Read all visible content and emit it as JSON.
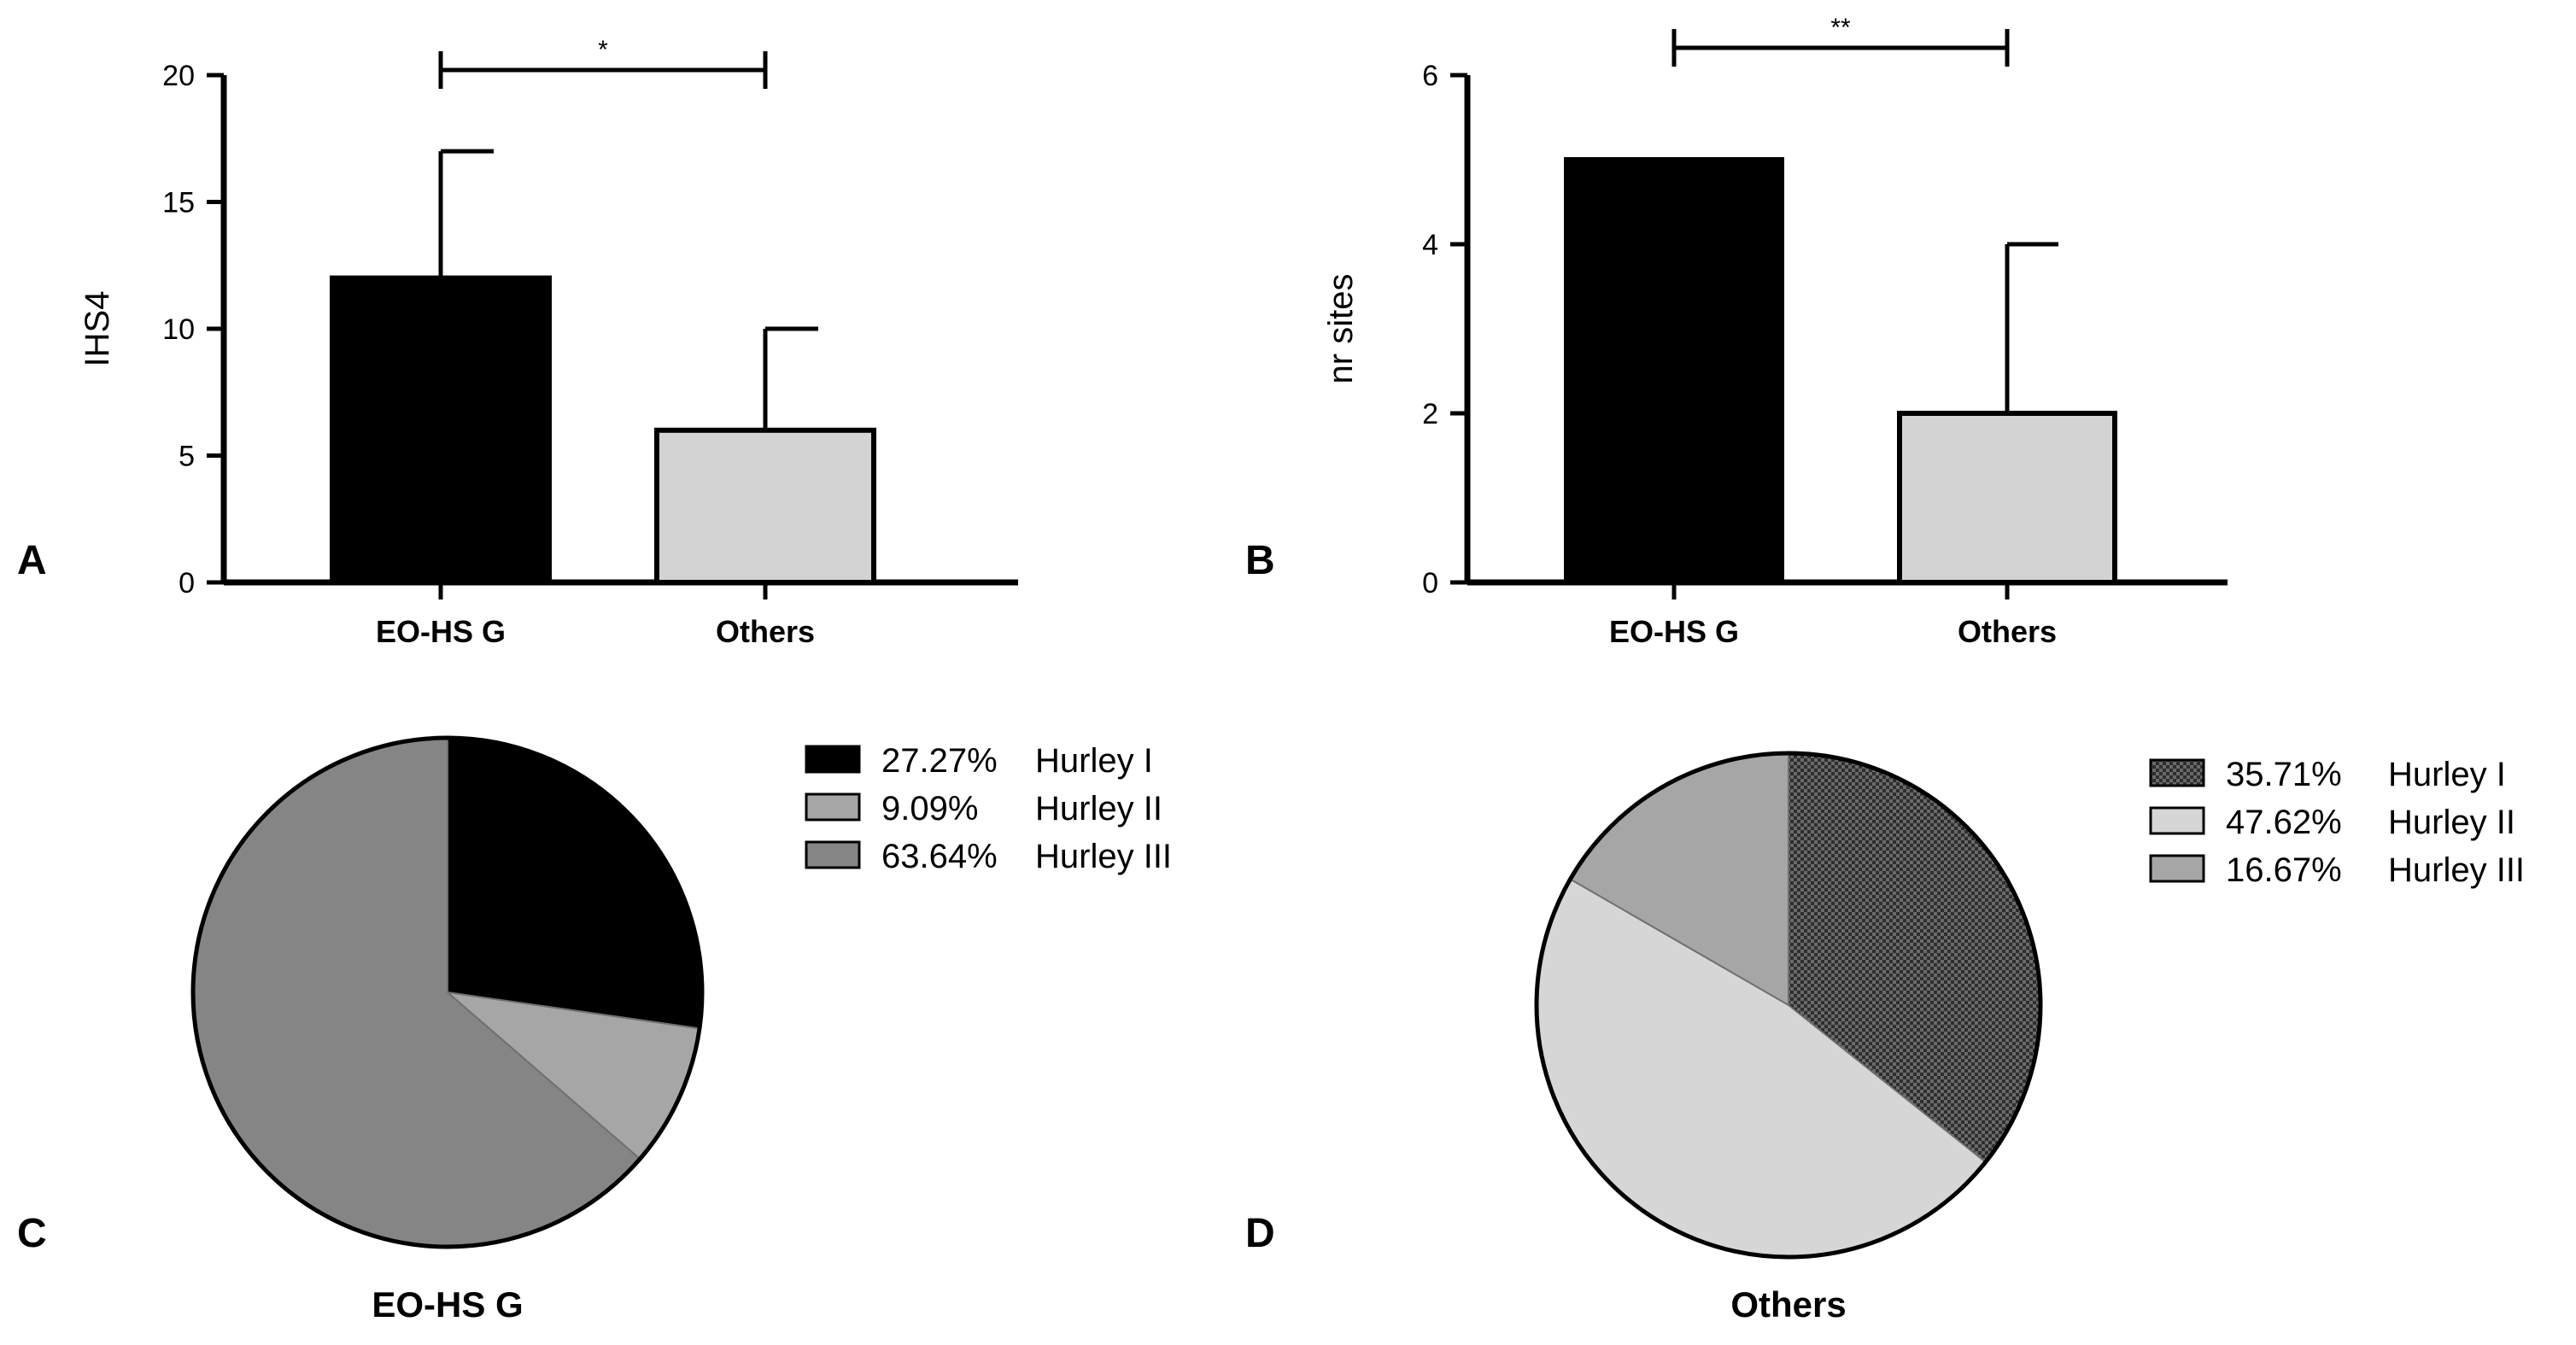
{
  "panels": {
    "A": {
      "letter": "A"
    },
    "B": {
      "letter": "B"
    },
    "C": {
      "letter": "C"
    },
    "D": {
      "letter": "D"
    }
  },
  "chart_data": [
    {
      "id": "A",
      "type": "bar",
      "categories": [
        "EO-HS G",
        "Others"
      ],
      "values": [
        12,
        6
      ],
      "error_upper": [
        17,
        10
      ],
      "colors": [
        "#000000",
        "#d3d3d3"
      ],
      "ylabel": "IHS4",
      "ylim": [
        0,
        20
      ],
      "yticks": [
        "0",
        "5",
        "10",
        "15",
        "20"
      ],
      "significance": "*"
    },
    {
      "id": "B",
      "type": "bar",
      "categories": [
        "EO-HS G",
        "Others"
      ],
      "values": [
        5,
        2
      ],
      "error_upper": [
        5,
        4
      ],
      "colors": [
        "#000000",
        "#d3d3d3"
      ],
      "ylabel": "nr sites",
      "ylim": [
        0,
        6
      ],
      "yticks": [
        "0",
        "2",
        "4",
        "6"
      ],
      "significance": "**"
    },
    {
      "id": "C",
      "type": "pie",
      "title": "EO-HS G",
      "slices": [
        {
          "label": "Hurley I",
          "percent_label": "27.27%",
          "value": 27.27,
          "color": "#000000",
          "pattern": "solid"
        },
        {
          "label": "Hurley II",
          "percent_label": "9.09%",
          "value": 9.09,
          "color": "#a6a6a6",
          "pattern": "solid"
        },
        {
          "label": "Hurley III",
          "percent_label": "63.64%",
          "value": 63.64,
          "color": "#858585",
          "pattern": "solid"
        }
      ]
    },
    {
      "id": "D",
      "type": "pie",
      "title": "Others",
      "slices": [
        {
          "label": "Hurley I",
          "percent_label": "35.71%",
          "value": 35.71,
          "color": "#555555",
          "pattern": "checker"
        },
        {
          "label": "Hurley II",
          "percent_label": "47.62%",
          "value": 47.62,
          "color": "#d6d6d6",
          "pattern": "solid"
        },
        {
          "label": "Hurley III",
          "percent_label": "16.67%",
          "value": 16.67,
          "color": "#a6a6a6",
          "pattern": "solid"
        }
      ]
    }
  ]
}
